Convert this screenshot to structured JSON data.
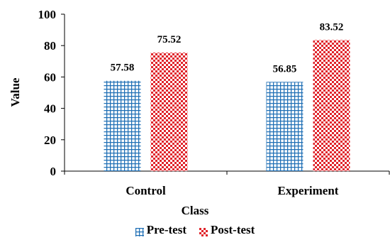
{
  "chart_data": {
    "type": "bar",
    "categories": [
      "Control",
      "Experiment"
    ],
    "series": [
      {
        "name": "Pre-test",
        "values": [
          57.58,
          56.85
        ],
        "color": "#1f6fb5",
        "pattern": "grid"
      },
      {
        "name": "Post-test",
        "values": [
          75.52,
          83.52
        ],
        "color": "#e0242b",
        "pattern": "dots"
      }
    ],
    "data_labels": [
      [
        "57.58",
        "56.85"
      ],
      [
        "75.52",
        "83.52"
      ]
    ],
    "title": "",
    "xlabel": "Class",
    "ylabel": "Value",
    "ylim": [
      0,
      100
    ],
    "yticks": [
      0,
      20,
      40,
      60,
      80,
      100
    ],
    "ytick_labels": [
      "0",
      "20",
      "40",
      "60",
      "80",
      "100"
    ],
    "grid": false,
    "legend_position": "bottom"
  }
}
